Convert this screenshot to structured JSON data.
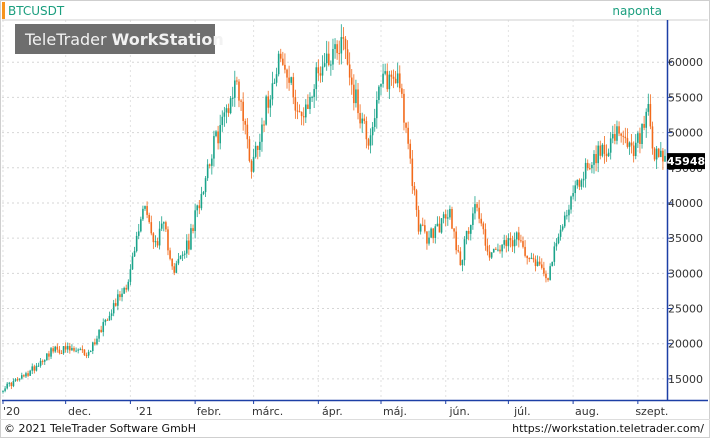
{
  "header": {
    "symbol": "BTCUSDT",
    "interval": "naponta"
  },
  "watermark": {
    "brand_regular": "TeleTrader ",
    "brand_bold": "WorkStation"
  },
  "footer": {
    "copyright": "© 2021 TeleTrader Software GmbH",
    "url": "https://workstation.teletrader.com/"
  },
  "colors": {
    "up": "#1aa38a",
    "down": "#f26a1b",
    "accent": "#f7941d",
    "header_text": "#1a9e7e",
    "price_tag_bg": "#000000",
    "watermark_bg": "#6e6e6e"
  },
  "chart_data": {
    "type": "candlestick",
    "x_ticks": [
      "'20",
      "dec.",
      "'21",
      "febr.",
      "márc.",
      "ápr.",
      "máj.",
      "jún.",
      "júl.",
      "aug.",
      "szept."
    ],
    "y_ticks": [
      15000,
      20000,
      25000,
      30000,
      35000,
      40000,
      45000,
      50000,
      55000,
      60000
    ],
    "ylim": [
      12000,
      66000
    ],
    "last_price": "45948",
    "grid": true,
    "anchors": [
      {
        "date": "2020-11-01",
        "close": 13700
      },
      {
        "date": "2020-11-12",
        "close": 15500
      },
      {
        "date": "2020-11-24",
        "close": 19000
      },
      {
        "date": "2020-12-01",
        "close": 19200
      },
      {
        "date": "2020-12-12",
        "close": 18600
      },
      {
        "date": "2020-12-20",
        "close": 23500
      },
      {
        "date": "2020-12-31",
        "close": 29000
      },
      {
        "date": "2021-01-08",
        "close": 40500
      },
      {
        "date": "2021-01-12",
        "close": 34000
      },
      {
        "date": "2021-01-17",
        "close": 36500
      },
      {
        "date": "2021-01-22",
        "close": 30500
      },
      {
        "date": "2021-01-29",
        "close": 34200
      },
      {
        "date": "2021-02-08",
        "close": 46500
      },
      {
        "date": "2021-02-21",
        "close": 57500
      },
      {
        "date": "2021-02-28",
        "close": 45200
      },
      {
        "date": "2021-03-13",
        "close": 61000
      },
      {
        "date": "2021-03-25",
        "close": 51500
      },
      {
        "date": "2021-04-01",
        "close": 59000
      },
      {
        "date": "2021-04-13",
        "close": 63500
      },
      {
        "date": "2021-04-18",
        "close": 55500
      },
      {
        "date": "2021-04-25",
        "close": 49000
      },
      {
        "date": "2021-05-02",
        "close": 57500
      },
      {
        "date": "2021-05-10",
        "close": 58000
      },
      {
        "date": "2021-05-13",
        "close": 49500
      },
      {
        "date": "2021-05-19",
        "close": 37000
      },
      {
        "date": "2021-05-23",
        "close": 34800
      },
      {
        "date": "2021-06-03",
        "close": 38500
      },
      {
        "date": "2021-06-08",
        "close": 31500
      },
      {
        "date": "2021-06-15",
        "close": 40200
      },
      {
        "date": "2021-06-22",
        "close": 32500
      },
      {
        "date": "2021-07-05",
        "close": 34800
      },
      {
        "date": "2021-07-20",
        "close": 29800
      },
      {
        "date": "2021-07-30",
        "close": 40000
      },
      {
        "date": "2021-08-08",
        "close": 45500
      },
      {
        "date": "2021-08-15",
        "close": 47500
      },
      {
        "date": "2021-08-22",
        "close": 49500
      },
      {
        "date": "2021-08-30",
        "close": 47000
      },
      {
        "date": "2021-09-06",
        "close": 52500
      },
      {
        "date": "2021-09-08",
        "close": 46500
      },
      {
        "date": "2021-09-14",
        "close": 46000
      }
    ]
  }
}
